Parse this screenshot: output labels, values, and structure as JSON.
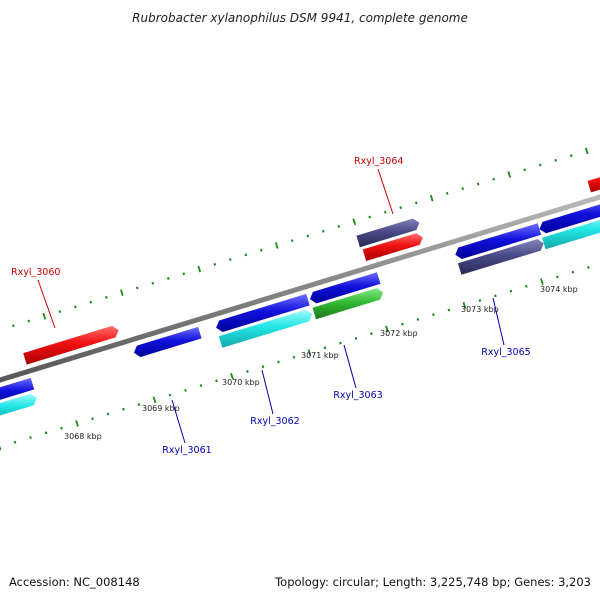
{
  "title": "Rubrobacter xylanophilus DSM 9941, complete genome",
  "accession": "Accession: NC_008148",
  "topology": "Topology: circular; Length: 3,225,748 bp; Genes: 3,203",
  "kbp_labels": [
    "3068 kbp",
    "3069 kbp",
    "3070 kbp",
    "3071 kbp",
    "3072 kbp",
    "3073 kbp",
    "3074 kbp"
  ],
  "gene_labels": {
    "top": [
      "Rxyl_3060",
      "Rxyl_3064"
    ],
    "bottom": [
      "Rxyl_3061",
      "Rxyl_3062",
      "Rxyl_3063",
      "Rxyl_3065"
    ]
  },
  "colors": {
    "backbone": "#8a8a8a",
    "tick": "#1a8a1a",
    "red": "#ee1111",
    "blue": "#1111dd",
    "cyan": "#22e6e6",
    "green": "#33bb33",
    "slate": "#4a4a88",
    "top_label": "#cc0000",
    "bottom_label": "#0000aa"
  }
}
